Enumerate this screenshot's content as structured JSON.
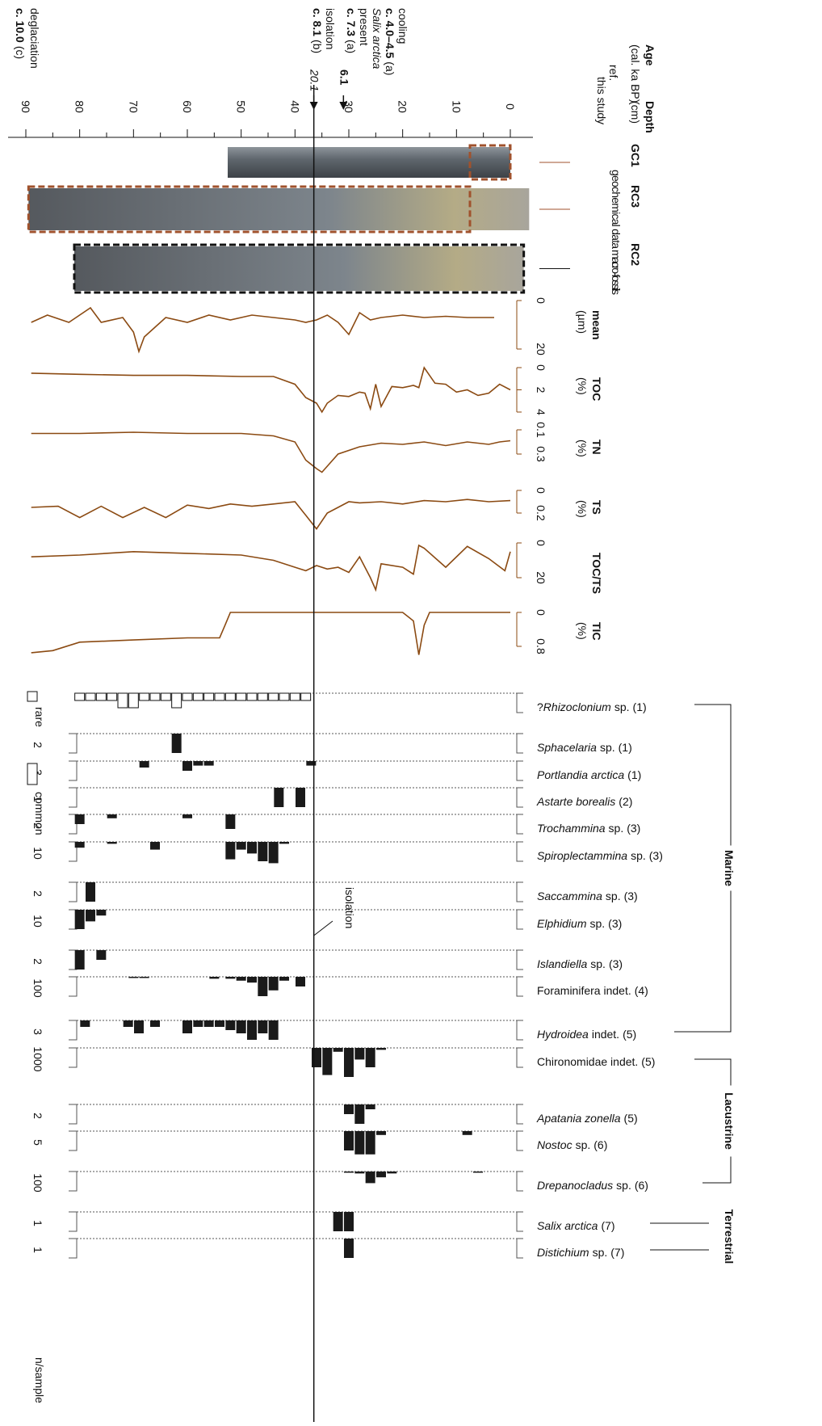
{
  "chart_data": {
    "type": "stratigraphy",
    "depth_axis": {
      "title": "Depth",
      "unit": "(cm)",
      "lim": [
        0,
        90
      ],
      "ticks": [
        0,
        10,
        20,
        30,
        40,
        50,
        60,
        70,
        80,
        90
      ]
    },
    "age": {
      "title": "Age",
      "unit": "(cal. ka BP)",
      "ref_label": "ref.",
      "study_label": "this study",
      "ref_events": [
        {
          "text": "deglaciation",
          "age": "c. 10.0",
          "source": "(c)"
        },
        {
          "text": "isolation",
          "age": "c. 8.1",
          "source": "(b)"
        },
        {
          "taxon": "Salix arctica",
          "text": "present",
          "age": "c. 7.3",
          "source": "(a)"
        },
        {
          "text": "cooling",
          "age": "c. 4.0–4.5",
          "source": "(a)"
        }
      ],
      "study_ages": [
        {
          "label": "20.1",
          "depth": 36.5
        },
        {
          "label": "6.1",
          "depth": 31
        }
      ]
    },
    "cores": [
      {
        "name": "GC1",
        "note": "geochemical data",
        "color": "#a0522d",
        "top": 0,
        "bottom": 52.5,
        "sampled": [
          0,
          7.5
        ]
      },
      {
        "name": "RC3",
        "color": "#a0522d",
        "top": -3.5,
        "bottom": 89.5,
        "sampled": [
          7.5,
          89.5
        ]
      },
      {
        "name": "RC2",
        "note": "macro-fossils",
        "color": "#111111",
        "top": -2.5,
        "bottom": 81,
        "sampled": [
          -2.5,
          81
        ]
      }
    ],
    "curves": [
      {
        "name": "mean",
        "unit": "(µm)",
        "color": "#8b4a12",
        "lim": [
          0,
          20
        ],
        "ticks": [
          0,
          20
        ],
        "depths": [
          3,
          8,
          12,
          16,
          20,
          24,
          26,
          28,
          30,
          32,
          34,
          36,
          38,
          40,
          44,
          48,
          52,
          56,
          60,
          64,
          66,
          68,
          69,
          70,
          72,
          76,
          78,
          82,
          86,
          89
        ],
        "values": [
          7,
          7,
          6.5,
          7,
          6,
          7,
          8,
          5,
          14,
          9,
          6,
          8,
          9,
          8,
          7,
          6,
          8,
          6,
          9,
          7,
          11,
          15,
          21,
          13,
          7,
          9,
          3,
          9,
          6,
          9
        ]
      },
      {
        "name": "TOC",
        "unit": "(%)",
        "color": "#8b4a12",
        "lim": [
          0,
          4
        ],
        "ticks": [
          0,
          2,
          4
        ],
        "depths": [
          0,
          2,
          4,
          6,
          8,
          10,
          12,
          14,
          16,
          17,
          18,
          20,
          22,
          24,
          25,
          26,
          27,
          28,
          30,
          32,
          34,
          35,
          36,
          38,
          40,
          44,
          50,
          60,
          70,
          80,
          89
        ],
        "values": [
          2,
          1.5,
          2.3,
          2.5,
          2,
          2.2,
          1.5,
          1.4,
          0,
          1.8,
          1.6,
          1.8,
          1.7,
          3.5,
          1.5,
          3.7,
          2.3,
          2.2,
          2.6,
          2.5,
          3.2,
          4,
          3.2,
          2.7,
          1.5,
          0.8,
          0.8,
          0.7,
          0.7,
          0.6,
          0.5
        ]
      },
      {
        "name": "TN",
        "unit": "(%)",
        "color": "#8b4a12",
        "lim": [
          0.1,
          0.3
        ],
        "ticks": [
          0.1,
          0.3
        ],
        "depths": [
          0,
          2,
          4,
          8,
          12,
          16,
          20,
          24,
          28,
          32,
          35,
          36,
          38,
          40,
          44,
          50,
          60,
          70,
          80,
          89
        ],
        "values": [
          0.19,
          0.2,
          0.22,
          0.2,
          0.23,
          0.2,
          0.22,
          0.21,
          0.24,
          0.3,
          0.45,
          0.42,
          0.35,
          0.2,
          0.15,
          0.13,
          0.13,
          0.12,
          0.13,
          0.13
        ]
      },
      {
        "name": "TS",
        "unit": "(%)",
        "color": "#8b4a12",
        "lim": [
          0,
          0.2
        ],
        "ticks": [
          0,
          0.2
        ],
        "depths": [
          0,
          4,
          8,
          12,
          16,
          20,
          24,
          28,
          30,
          32,
          34,
          36,
          38,
          40,
          44,
          48,
          52,
          56,
          60,
          64,
          68,
          72,
          76,
          80,
          84,
          89
        ],
        "values": [
          0.09,
          0.1,
          0.08,
          0.1,
          0.09,
          0.12,
          0.1,
          0.11,
          0.1,
          0.15,
          0.2,
          0.34,
          0.22,
          0.1,
          0.12,
          0.14,
          0.12,
          0.16,
          0.13,
          0.24,
          0.15,
          0.24,
          0.14,
          0.24,
          0.14,
          0.15
        ]
      },
      {
        "name": "TOC/TS",
        "color": "#8b4a12",
        "lim": [
          0,
          20
        ],
        "ticks": [
          0,
          20
        ],
        "depths": [
          0,
          1,
          4,
          8,
          12,
          16,
          17,
          18,
          20,
          24,
          25,
          26,
          28,
          30,
          32,
          34,
          36,
          38,
          40,
          44,
          50,
          60,
          70,
          80,
          89
        ],
        "values": [
          5,
          16,
          9,
          2,
          14,
          3,
          1.4,
          18,
          14,
          12,
          27,
          20,
          8,
          17,
          14,
          15,
          13,
          16,
          14,
          10,
          7,
          6,
          5,
          7,
          8
        ]
      },
      {
        "name": "TIC",
        "unit": "(%)",
        "color": "#8b4a12",
        "lim": [
          0,
          0.8
        ],
        "ticks": [
          0,
          0.8
        ],
        "depths": [
          0,
          5,
          10,
          15,
          16,
          17,
          18,
          20,
          30,
          40,
          50,
          52,
          53,
          54,
          56,
          60,
          70,
          80,
          85,
          89
        ],
        "values": [
          0,
          0,
          0,
          0,
          0.3,
          1.0,
          0.2,
          0,
          0,
          0,
          0,
          0,
          0.3,
          0.6,
          0.6,
          0.6,
          0.65,
          0.7,
          0.9,
          0.95
        ]
      }
    ],
    "isolation_line": {
      "depth": 36.5,
      "label": "isolation"
    },
    "legend": {
      "rare": "rare",
      "common": "common",
      "n_label": "n/sample"
    },
    "groups": [
      {
        "name": "Marine",
        "taxa": [
          {
            "prefix": "?",
            "name": "Rhizoclonium",
            "suffix": "sp.",
            "ref": "(1)",
            "style": "open",
            "depths": [
              38,
              40,
              42,
              44,
              46,
              48,
              50,
              52,
              54,
              56,
              58,
              60,
              62,
              64,
              66,
              68,
              70,
              72,
              74,
              76,
              78,
              80
            ],
            "values": [
              1,
              1,
              1,
              1,
              1,
              1,
              1,
              1,
              1,
              1,
              1,
              1,
              2,
              1,
              1,
              1,
              2,
              2,
              1,
              1,
              1,
              1
            ]
          },
          {
            "name": "Sphacelaria",
            "suffix": "sp.",
            "ref": "(1)",
            "tick": 2,
            "depths": [
              62
            ],
            "values": [
              2
            ]
          },
          {
            "name": "Portlandia arctica",
            "ref": "(1)",
            "tick": 3,
            "depths": [
              68,
              60,
              58,
              56,
              37
            ],
            "values": [
              1,
              1.5,
              0.7,
              0.7,
              0.7
            ]
          },
          {
            "name": "Astarte borealis",
            "ref": "(2)",
            "tick": 1,
            "depths": [
              43,
              39
            ],
            "values": [
              1,
              1
            ]
          },
          {
            "name": "Trochammina",
            "suffix": "sp.",
            "ref": "(3)",
            "tick": 2,
            "depths": [
              80,
              74,
              60,
              52
            ],
            "values": [
              1,
              0.4,
              0.4,
              1.5
            ]
          },
          {
            "name": "Spiroplectammina",
            "suffix": "sp.",
            "ref": "(3)",
            "tick": 10,
            "depths": [
              80,
              74,
              66,
              52,
              50,
              48,
              46,
              44,
              42
            ],
            "values": [
              3,
              1,
              4,
              9,
              4,
              6,
              10,
              11,
              1
            ]
          },
          {
            "name": "Saccammina",
            "suffix": "sp.",
            "ref": "(3)",
            "tick": 2,
            "depths": [
              78
            ],
            "values": [
              2
            ]
          },
          {
            "name": "Elphidium",
            "suffix": "sp.",
            "ref": "(3)",
            "tick": 10,
            "depths": [
              80,
              78,
              76
            ],
            "values": [
              10,
              6,
              3
            ]
          },
          {
            "name": "Islandiella",
            "suffix": "sp.",
            "ref": "(3)",
            "tick": 2,
            "depths": [
              80,
              76
            ],
            "values": [
              2,
              1
            ]
          },
          {
            "name": "Foraminifera indet.",
            "italic": false,
            "ref": "(4)",
            "tick": 100,
            "depths": [
              70,
              68,
              55,
              52,
              50,
              48,
              46,
              44,
              42,
              39
            ],
            "values": [
              5,
              5,
              10,
              10,
              20,
              30,
              100,
              70,
              20,
              50
            ]
          },
          {
            "name": "Hydroidea",
            "suffix": "indet.",
            "ref": "(5)",
            "tick": 3,
            "depths": [
              79,
              71,
              69,
              66,
              60,
              58,
              56,
              54,
              52,
              50,
              48,
              46,
              44
            ],
            "values": [
              1,
              1,
              2,
              1,
              2,
              1,
              1,
              1,
              1.5,
              2,
              3,
              2,
              3
            ]
          }
        ]
      },
      {
        "name": "Lacustrine",
        "taxa": [
          {
            "name": "Chironomidae indet.",
            "italic": false,
            "ref": "(5)",
            "tick": 1000,
            "depths": [
              36,
              34,
              32,
              30,
              28,
              26,
              24
            ],
            "values": [
              1000,
              1400,
              200,
              1500,
              600,
              1000,
              100
            ]
          },
          {
            "name": "Apatania zonella",
            "ref": "(5)",
            "tick": 2,
            "depths": [
              30,
              28,
              26
            ],
            "values": [
              1,
              2,
              0.5
            ]
          },
          {
            "name": "Nostoc",
            "suffix": "sp.",
            "ref": "(6)",
            "tick": 5,
            "depths": [
              30,
              28,
              26,
              24,
              8
            ],
            "values": [
              5,
              6,
              6,
              1,
              1
            ]
          },
          {
            "name": "Drepanocladus",
            "suffix": "sp.",
            "ref": "(6)",
            "tick": 100,
            "depths": [
              30,
              28,
              26,
              24,
              22,
              6
            ],
            "values": [
              5,
              10,
              60,
              30,
              10,
              2
            ]
          }
        ]
      },
      {
        "name": "Terrestrial",
        "taxa": [
          {
            "name": "Salix arctica",
            "ref": "(7)",
            "tick": 1,
            "depths": [
              32,
              30
            ],
            "values": [
              1,
              1
            ]
          },
          {
            "name": "Distichium",
            "suffix": "sp.",
            "ref": "(7)",
            "tick": 1,
            "depths": [
              30
            ],
            "values": [
              1
            ]
          }
        ]
      }
    ]
  }
}
